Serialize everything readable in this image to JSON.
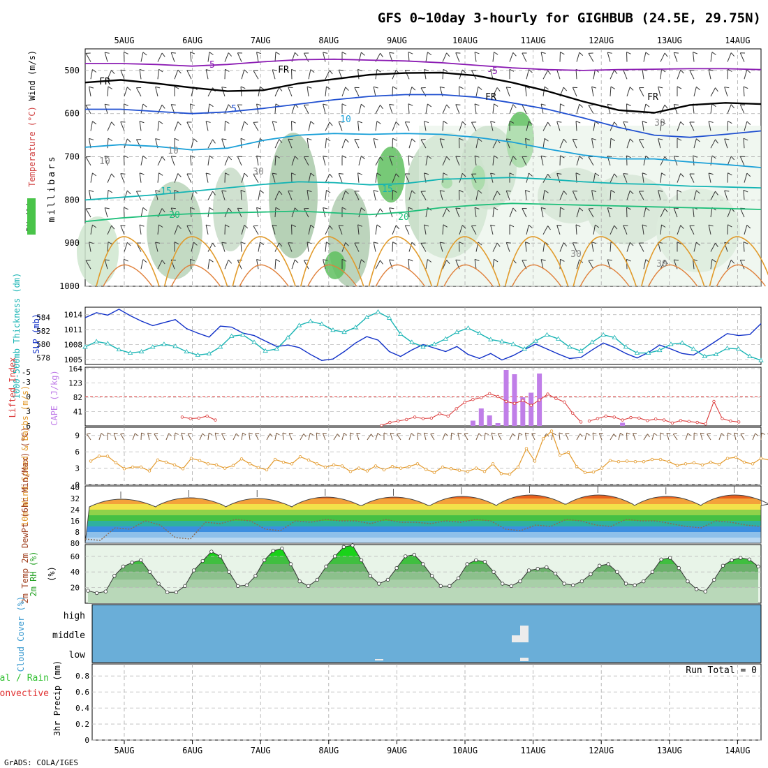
{
  "title": "GFS 0~10day 3-hourly for GIGHBUB (24.5E, 29.75N)",
  "footer": "GrADS: COLA/IGES",
  "dates": [
    "5AUG",
    "6AUG",
    "7AUG",
    "8AUG",
    "9AUG",
    "10AUG",
    "11AUG",
    "12AUG",
    "13AUG",
    "14AUG"
  ],
  "chart_data": [
    {
      "type": "heatmap",
      "panel": "upper-air",
      "ylabel_parts": [
        "RH (%)",
        "Temperature (°C)",
        "Wind (m/s)"
      ],
      "ylabel_units": "millibars",
      "y_ticks": [
        500,
        600,
        700,
        800,
        900,
        1000
      ],
      "ylim": [
        450,
        1000
      ],
      "contour_labels": [
        "-5",
        "FR",
        "-5",
        "FR",
        "FR",
        "FR",
        "5",
        "10",
        "15",
        "20",
        "15",
        "20",
        "10",
        "10",
        "30",
        "30",
        "30",
        "30"
      ],
      "isotherms": [
        {
          "label": "-5",
          "color": "#8b1bb3",
          "p": [
            484,
            484,
            486,
            490,
            486,
            480,
            475,
            474,
            476,
            478,
            482,
            488,
            494,
            498,
            500,
            498,
            497,
            496,
            496,
            498
          ]
        },
        {
          "label": "FR",
          "color": "#000000",
          "p": [
            528,
            522,
            530,
            540,
            548,
            546,
            530,
            520,
            510,
            506,
            505,
            512,
            528,
            548,
            572,
            592,
            598,
            580,
            575,
            578
          ]
        },
        {
          "label": "5",
          "color": "#1f4fd0",
          "p": [
            590,
            590,
            595,
            600,
            596,
            588,
            578,
            568,
            560,
            556,
            556,
            562,
            575,
            590,
            610,
            632,
            650,
            655,
            648,
            640
          ]
        },
        {
          "label": "10",
          "color": "#1aa0d8",
          "p": [
            678,
            672,
            676,
            684,
            680,
            662,
            650,
            646,
            648,
            646,
            648,
            655,
            666,
            682,
            696,
            705,
            705,
            712,
            718,
            725
          ]
        },
        {
          "label": "15",
          "color": "#12b4b4",
          "p": [
            800,
            794,
            788,
            780,
            772,
            764,
            758,
            760,
            765,
            762,
            752,
            750,
            748,
            752,
            758,
            762,
            764,
            768,
            770,
            772
          ]
        },
        {
          "label": "20",
          "color": "#1ebf7a",
          "p": [
            850,
            842,
            836,
            832,
            830,
            828,
            826,
            830,
            834,
            828,
            818,
            812,
            808,
            810,
            812,
            814,
            816,
            818,
            820,
            822
          ]
        }
      ]
    },
    {
      "type": "line",
      "panel": "slp-thickness",
      "ylabel_left": "1000-500mb Thickness (dm)",
      "ylabel_right": "SLP (mb)",
      "left_ticks": [
        578,
        580,
        582,
        584
      ],
      "right_ticks": [
        1005,
        1008,
        1011,
        1014
      ],
      "series": [
        {
          "name": "SLP (mb)",
          "color": "#1030c8",
          "values": [
            1013.4,
            1014.4,
            1013.9,
            1015.1,
            1013.8,
            1012.7,
            1011.8,
            1012.4,
            1013.0,
            1011.2,
            1010.3,
            1009.5,
            1011.7,
            1011.5,
            1010.3,
            1009.8,
            1008.7,
            1007.6,
            1007.9,
            1007.4,
            1006.0,
            1004.8,
            1005.1,
            1006.6,
            1008.3,
            1009.6,
            1008.9,
            1006.6,
            1005.6,
            1006.9,
            1008.0,
            1007.3,
            1006.6,
            1007.6,
            1006.0,
            1005.2,
            1006.2,
            1004.9,
            1005.8,
            1007.0,
            1008.1,
            1007.1,
            1006.1,
            1005.2,
            1005.4,
            1006.9,
            1008.3,
            1007.4,
            1006.2,
            1005.3,
            1006.4,
            1007.9,
            1007.1,
            1006.2,
            1005.9,
            1007.2,
            1008.7,
            1010.2,
            1009.8,
            1010.0,
            1012.2
          ]
        },
        {
          "name": "1000-500mb Thickness (dm)",
          "color": "#18b4b4",
          "marker": "triangle",
          "values": [
            579.6,
            580.4,
            580.1,
            579.2,
            578.7,
            578.9,
            579.6,
            580.0,
            579.7,
            578.9,
            578.4,
            578.6,
            579.6,
            581.2,
            581.4,
            580.3,
            579.0,
            579.3,
            581.0,
            582.8,
            583.4,
            583.0,
            582.1,
            581.8,
            582.5,
            584.0,
            584.8,
            583.9,
            581.5,
            580.3,
            579.6,
            580.0,
            580.8,
            581.8,
            582.4,
            581.6,
            580.7,
            580.4,
            580.0,
            579.3,
            580.5,
            581.4,
            580.8,
            579.6,
            579.0,
            580.3,
            581.4,
            581.0,
            579.6,
            578.7,
            578.7,
            579.1,
            580.0,
            580.2,
            579.3,
            578.2,
            578.5,
            579.4,
            579.3,
            578.2,
            577.6
          ]
        }
      ]
    },
    {
      "type": "bar",
      "panel": "cape-li",
      "ylabel_left": "Lifted Index",
      "ylabel_right": "CAPE (J/kg)",
      "li_ticks": [
        -5,
        -3,
        0,
        3,
        6
      ],
      "cape_ticks": [
        41,
        82,
        123,
        164
      ],
      "bar_color": "#c07ee8",
      "li_color": "#dc3c3c",
      "cape_bars": [
        {
          "i": 46,
          "v": 15
        },
        {
          "i": 47,
          "v": 50
        },
        {
          "i": 48,
          "v": 30
        },
        {
          "i": 49,
          "v": 8
        },
        {
          "i": 50,
          "v": 160
        },
        {
          "i": 51,
          "v": 148
        },
        {
          "i": 52,
          "v": 82
        },
        {
          "i": 53,
          "v": 95
        },
        {
          "i": 54,
          "v": 150
        },
        {
          "i": 64,
          "v": 9
        }
      ],
      "li_segments": [
        {
          "start": 11,
          "values": [
            4.2,
            4.5,
            4.4,
            4.0,
            4.8
          ]
        },
        {
          "start": 35,
          "values": [
            5.9,
            5.3,
            5.0,
            4.7,
            4.2,
            4.5,
            4.4,
            3.5,
            4.0,
            2.5,
            1.2,
            0.6,
            0.2,
            -0.6,
            0.0,
            1.0,
            1.4,
            0.8,
            1.8,
            0.7,
            -0.5,
            0.4,
            1.1,
            3.4,
            5.2
          ]
        },
        {
          "start": 60,
          "values": [
            5.0,
            4.5,
            4.0,
            4.2,
            4.8,
            4.3,
            4.4,
            4.9,
            4.6,
            4.8,
            5.4,
            4.9,
            5.1,
            5.3,
            5.6,
            1.0,
            4.5,
            5.0,
            5.2
          ]
        }
      ]
    },
    {
      "type": "line",
      "panel": "wind10m",
      "ylabel": "10m Wind Speed & Barbs (m/s)",
      "y_ticks": [
        0,
        3,
        6,
        9
      ],
      "series": [
        {
          "name": "Speed",
          "color": "#e39a2c",
          "values": [
            4.3,
            5.2,
            5.2,
            4.0,
            2.9,
            3.2,
            3.2,
            2.5,
            4.5,
            4.1,
            3.6,
            2.9,
            4.8,
            4.4,
            3.8,
            3.6,
            3.0,
            3.5,
            4.7,
            3.8,
            3.1,
            2.7,
            4.6,
            4.1,
            3.8,
            5.1,
            4.5,
            3.8,
            3.2,
            3.6,
            3.4,
            2.4,
            3.0,
            2.5,
            3.4,
            2.7,
            3.3,
            3.0,
            3.3,
            3.8,
            2.8,
            2.2,
            3.2,
            2.9,
            2.6,
            2.4,
            3.0,
            2.4,
            3.8,
            2.0,
            1.9,
            3.2,
            6.6,
            4.3,
            8.4,
            9.8,
            5.4,
            5.9,
            3.3,
            2.2,
            2.3,
            3.0,
            4.4,
            4.2,
            4.3,
            4.2,
            4.2,
            4.6,
            4.6,
            4.2,
            3.5,
            3.8,
            4.0,
            3.6,
            4.1,
            3.7,
            4.8,
            5.0,
            4.1,
            3.8,
            4.8,
            4.5,
            3.0,
            4.5,
            5.5,
            4.5,
            3.4,
            2.0,
            1.2,
            1.5,
            2.0
          ]
        }
      ]
    },
    {
      "type": "area",
      "panel": "temperature",
      "ylabel": "2m Temp 2m DewPt (6hr Min/Max) (°C)",
      "y_ticks": [
        0,
        8,
        16,
        24,
        32,
        40
      ],
      "y_tick_labels": [
        "80",
        "8",
        "16",
        "24",
        "32",
        "40"
      ],
      "series": [
        {
          "name": "2m Temp",
          "max": [
            34,
            35,
            35,
            36,
            36,
            37,
            38,
            38,
            37,
            38
          ],
          "min": [
            26,
            27,
            26,
            27,
            27,
            27,
            28,
            28,
            27,
            28
          ]
        },
        {
          "name": "2m DewPt",
          "values": [
            3,
            2,
            11,
            10,
            16,
            13,
            4,
            3,
            15,
            14,
            17,
            16,
            10,
            9,
            16,
            15,
            17,
            16,
            16,
            14,
            17,
            15,
            15,
            14,
            16,
            15,
            17,
            16,
            10,
            9,
            13,
            12,
            17,
            16,
            13,
            12,
            17,
            16,
            16,
            14,
            12,
            11,
            16,
            15,
            13,
            12
          ]
        }
      ]
    },
    {
      "type": "area",
      "panel": "rh",
      "ylabel": "2m RH (%)",
      "y_ticks": [
        20,
        40,
        60
      ],
      "series": [
        {
          "name": "2m RH",
          "values": [
            16,
            13,
            15,
            35,
            47,
            52,
            55,
            40,
            25,
            14,
            14,
            22,
            42,
            54,
            66,
            60,
            40,
            22,
            23,
            35,
            55,
            67,
            70,
            50,
            28,
            22,
            30,
            47,
            60,
            72,
            74,
            55,
            35,
            25,
            30,
            45,
            60,
            62,
            50,
            35,
            22,
            22,
            32,
            50,
            55,
            53,
            40,
            25,
            22,
            28,
            42,
            44,
            46,
            38,
            25,
            23,
            28,
            37,
            48,
            50,
            40,
            25,
            23,
            28,
            40,
            56,
            58,
            45,
            28,
            18,
            15,
            30,
            48,
            55,
            58,
            56,
            47
          ]
        }
      ]
    },
    {
      "type": "heatmap",
      "panel": "cloud",
      "ylabel": "Cloud Cover (%)",
      "rows": [
        "high",
        "middle",
        "low"
      ]
    },
    {
      "type": "bar",
      "panel": "precip",
      "ylabel_left": "Total / Rain Convective",
      "ylabel_legend": [
        "Total / Rain",
        "Convective"
      ],
      "ylabel": "3hr Precip (mm)",
      "y_ticks": [
        0,
        0.2,
        0.4,
        0.6,
        0.8
      ],
      "annotation": "Run Total = 0",
      "values": []
    }
  ]
}
